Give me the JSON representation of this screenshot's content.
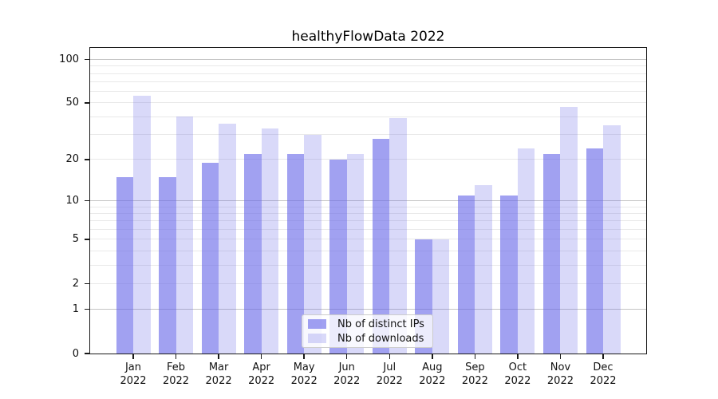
{
  "title": "healthyFlowData 2022",
  "chart_data": {
    "type": "bar",
    "title": "healthyFlowData 2022",
    "categories": [
      "Jan",
      "Feb",
      "Mar",
      "Apr",
      "May",
      "Jun",
      "Jul",
      "Aug",
      "Sep",
      "Oct",
      "Nov",
      "Dec"
    ],
    "category_year": "2022",
    "series": [
      {
        "name": "Nb of distinct IPs",
        "color": "rgba(104,104,232,0.62)",
        "values": [
          15,
          15,
          19,
          22,
          22,
          20,
          28,
          5,
          11,
          11,
          22,
          24
        ]
      },
      {
        "name": "Nb of downloads",
        "color": "rgba(104,104,232,0.25)",
        "values": [
          56,
          40,
          36,
          33,
          30,
          22,
          39,
          5,
          13,
          24,
          47,
          35
        ]
      }
    ],
    "xlabel": "",
    "ylabel": "",
    "yscale": "symlog-ln(1+v)",
    "ylim": [
      0,
      120
    ],
    "yticks": [
      0,
      1,
      2,
      5,
      10,
      20,
      50,
      100
    ],
    "major_gridlines": [
      1,
      10,
      100
    ],
    "minor_gridlines": [
      2,
      3,
      4,
      5,
      6,
      7,
      8,
      9,
      20,
      30,
      40,
      50,
      60,
      70,
      80,
      90
    ],
    "grid": true,
    "legend_position": "lower center"
  },
  "legend": {
    "items": [
      {
        "label": "Nb of distinct IPs"
      },
      {
        "label": "Nb of downloads"
      }
    ]
  },
  "colors": {
    "bar_distinct_ips": "rgba(104,104,232,0.62)",
    "bar_downloads": "rgba(104,104,232,0.25)",
    "grid_major": "#c3c3c3",
    "grid_minor": "#e9e9e9",
    "spine": "#1a1a1a",
    "text": "#111111",
    "background": "#ffffff"
  }
}
